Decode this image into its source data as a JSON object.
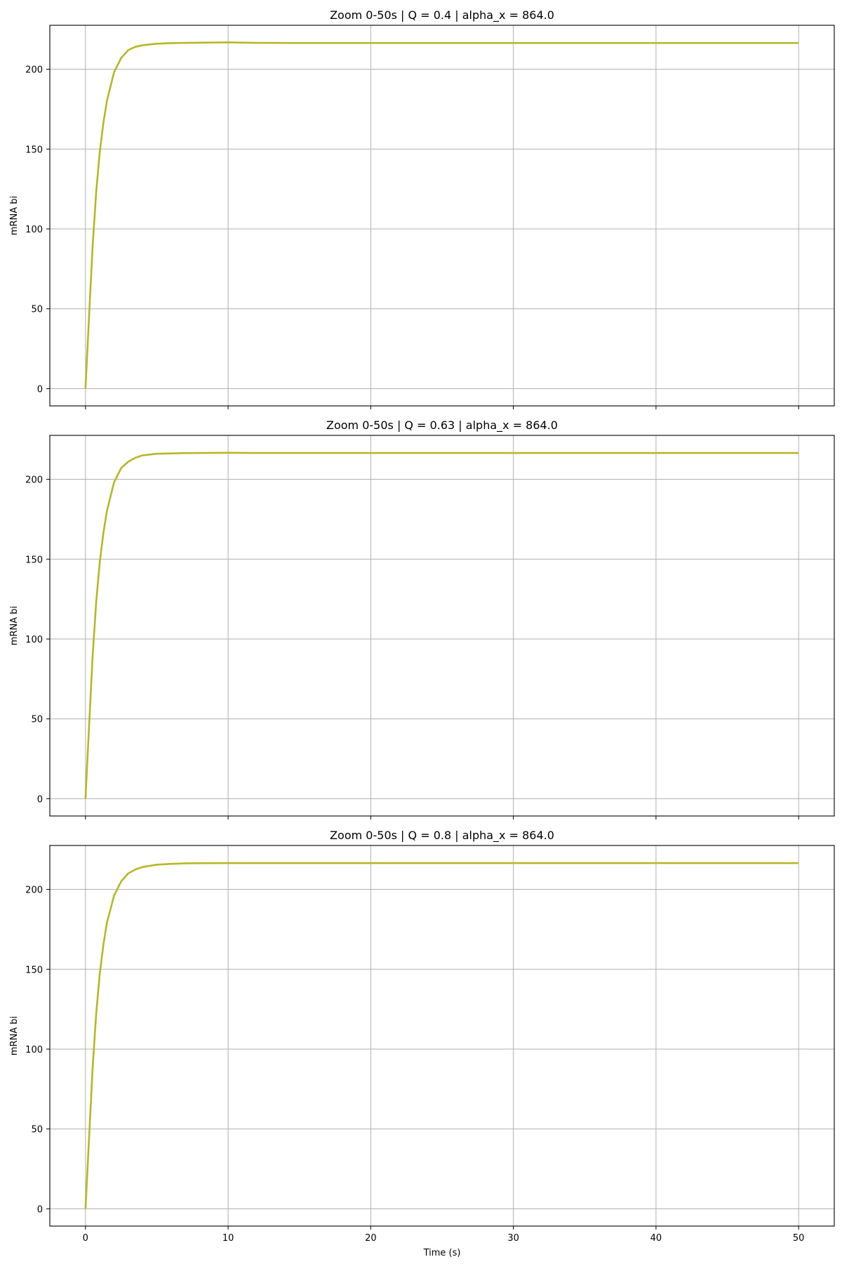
{
  "figure": {
    "xlabel": "Time (s)",
    "line_color": "#b5b823",
    "grid_color": "#b0b0b0"
  },
  "chart_data": [
    {
      "type": "line",
      "title": "Zoom 0-50s | Q = 0.4 | alpha_x = 864.0",
      "xlabel": "",
      "ylabel": "mRNA bi",
      "xlim": [
        -2.5,
        52.5
      ],
      "ylim": [
        -10.8,
        227.5
      ],
      "xticks": [
        0,
        10,
        20,
        30,
        40,
        50
      ],
      "xtick_labels_visible": false,
      "yticks": [
        0,
        50,
        100,
        150,
        200
      ],
      "grid": true,
      "series": [
        {
          "color": "#b5b823",
          "x": [
            0,
            0.25,
            0.5,
            0.75,
            1,
            1.25,
            1.5,
            2,
            2.5,
            3,
            3.5,
            4,
            5,
            6,
            7,
            8,
            10,
            12,
            15,
            20,
            25,
            30,
            35,
            40,
            45,
            50
          ],
          "y": [
            0,
            45,
            89,
            123,
            148,
            166,
            180,
            198,
            207,
            212,
            214,
            215,
            216,
            216.3,
            216.5,
            216.6,
            216.8,
            216.5,
            216.4,
            216.4,
            216.4,
            216.4,
            216.4,
            216.4,
            216.4,
            216.4
          ]
        }
      ]
    },
    {
      "type": "line",
      "title": "Zoom 0-50s | Q = 0.63 | alpha_x = 864.0",
      "xlabel": "",
      "ylabel": "mRNA bi",
      "xlim": [
        -2.5,
        52.5
      ],
      "ylim": [
        -10.8,
        227.5
      ],
      "xticks": [
        0,
        10,
        20,
        30,
        40,
        50
      ],
      "xtick_labels_visible": false,
      "yticks": [
        0,
        50,
        100,
        150,
        200
      ],
      "grid": true,
      "series": [
        {
          "color": "#b5b823",
          "x": [
            0,
            0.25,
            0.5,
            0.75,
            1,
            1.25,
            1.5,
            2,
            2.5,
            3,
            3.5,
            4,
            5,
            6,
            7,
            8,
            10,
            12,
            15,
            20,
            25,
            30,
            35,
            40,
            45,
            50
          ],
          "y": [
            0,
            45,
            89,
            123,
            148,
            166,
            180,
            198,
            207,
            211,
            213.5,
            215,
            216,
            216.2,
            216.4,
            216.5,
            216.6,
            216.5,
            216.5,
            216.5,
            216.5,
            216.5,
            216.5,
            216.5,
            216.5,
            216.5
          ]
        }
      ]
    },
    {
      "type": "line",
      "title": "Zoom 0-50s | Q = 0.8 | alpha_x = 864.0",
      "xlabel": "Time (s)",
      "ylabel": "mRNA bi",
      "xlim": [
        -2.5,
        52.5
      ],
      "ylim": [
        -10.8,
        227.5
      ],
      "xticks": [
        0,
        10,
        20,
        30,
        40,
        50
      ],
      "xtick_labels_visible": true,
      "yticks": [
        0,
        50,
        100,
        150,
        200
      ],
      "grid": true,
      "series": [
        {
          "color": "#b5b823",
          "x": [
            0,
            0.25,
            0.5,
            0.75,
            1,
            1.25,
            1.5,
            2,
            2.5,
            3,
            3.5,
            4,
            5,
            6,
            7,
            8,
            10,
            12,
            15,
            20,
            25,
            30,
            35,
            40,
            45,
            50
          ],
          "y": [
            0,
            44,
            88,
            122,
            147,
            165,
            179,
            196,
            205,
            210,
            212.5,
            214,
            215.5,
            216,
            216.3,
            216.4,
            216.5,
            216.5,
            216.5,
            216.5,
            216.5,
            216.5,
            216.5,
            216.5,
            216.5,
            216.5
          ]
        }
      ]
    }
  ]
}
